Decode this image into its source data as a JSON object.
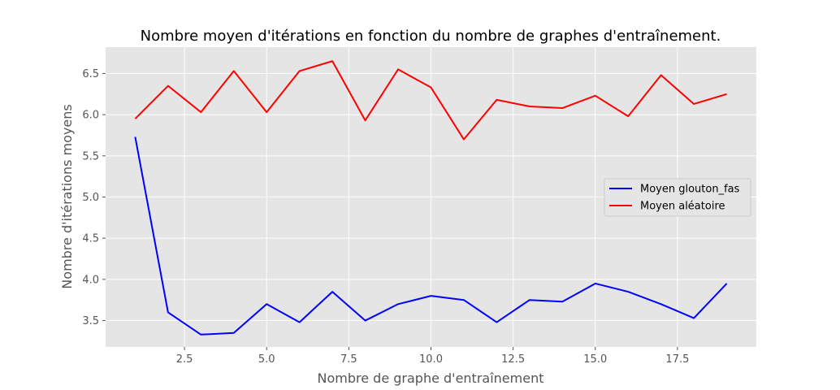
{
  "chart_data": {
    "type": "line",
    "title": "Nombre moyen d'itérations en fonction du nombre de graphes d'entraînement.",
    "xlabel": "Nombre de graphe d'entraînement",
    "ylabel": "Nombre d'itérations moyens",
    "xlim": [
      0.1,
      19.9
    ],
    "ylim": [
      3.18,
      6.82
    ],
    "x_ticks": [
      2.5,
      5.0,
      7.5,
      10.0,
      12.5,
      15.0,
      17.5
    ],
    "x_tick_labels": [
      "2.5",
      "5.0",
      "7.5",
      "10.0",
      "12.5",
      "15.0",
      "17.5"
    ],
    "y_ticks": [
      3.5,
      4.0,
      4.5,
      5.0,
      5.5,
      6.0,
      6.5
    ],
    "y_tick_labels": [
      "3.5",
      "4.0",
      "4.5",
      "5.0",
      "5.5",
      "6.0",
      "6.5"
    ],
    "grid": true,
    "legend_position": "center-right",
    "x": [
      1,
      2,
      3,
      4,
      5,
      6,
      7,
      8,
      9,
      10,
      11,
      12,
      13,
      14,
      15,
      16,
      17,
      18,
      19
    ],
    "series": [
      {
        "name": "Moyen glouton_fas",
        "color": "#0000ff",
        "values": [
          5.73,
          3.6,
          3.33,
          3.35,
          3.7,
          3.48,
          3.85,
          3.5,
          3.7,
          3.8,
          3.75,
          3.48,
          3.75,
          3.73,
          3.95,
          3.85,
          3.7,
          3.53,
          3.95
        ]
      },
      {
        "name": "Moyen aléatoire",
        "color": "#ff0000",
        "values": [
          5.95,
          6.35,
          6.03,
          6.53,
          6.03,
          6.53,
          6.65,
          5.93,
          6.55,
          6.33,
          5.7,
          6.18,
          6.1,
          6.08,
          6.23,
          5.98,
          6.48,
          6.13,
          6.25
        ]
      }
    ]
  },
  "colors": {
    "plot_background": "#e5e5e5",
    "grid": "#ffffff"
  }
}
